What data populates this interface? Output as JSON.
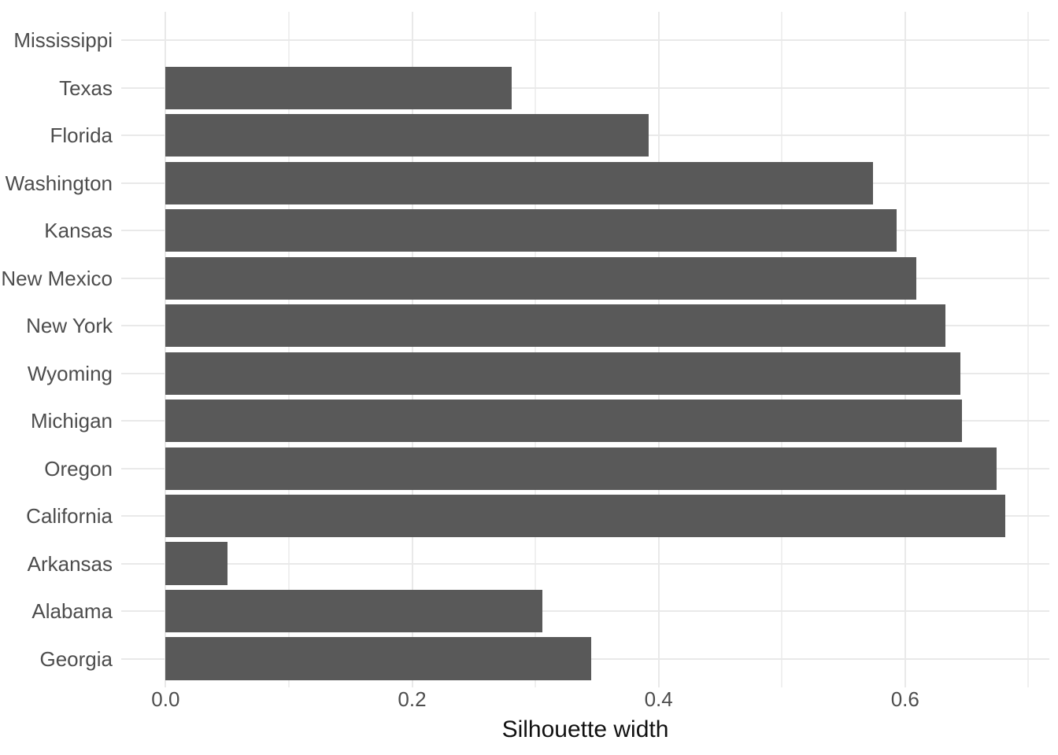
{
  "chart_data": {
    "type": "bar",
    "orientation": "horizontal",
    "title": "",
    "xlabel": "Silhouette width",
    "ylabel": "",
    "categories": [
      "Mississippi",
      "Texas",
      "Florida",
      "Washington",
      "Kansas",
      "New Mexico",
      "New York",
      "Wyoming",
      "Michigan",
      "Oregon",
      "California",
      "Arkansas",
      "Alabama",
      "Georgia"
    ],
    "values": [
      0.0,
      0.281,
      0.392,
      0.574,
      0.593,
      0.609,
      0.633,
      0.645,
      0.646,
      0.674,
      0.681,
      0.05,
      0.306,
      0.345
    ],
    "x_tick_labels": [
      "0.0",
      "0.2",
      "0.4",
      "0.6"
    ],
    "x_major_ticks": [
      0.0,
      0.2,
      0.4,
      0.6
    ],
    "x_minor_ticks": [
      0.1,
      0.3,
      0.5,
      0.7
    ],
    "xlim": [
      -0.036,
      0.717
    ],
    "grid": "on",
    "legend": "none",
    "colors": {
      "bar": "#595959",
      "axis_text": "#4d4d4d",
      "axis_title": "#111111",
      "grid_major": "#e9e9e9",
      "grid_minor": "#f0f0f0",
      "background": "#ffffff"
    }
  }
}
